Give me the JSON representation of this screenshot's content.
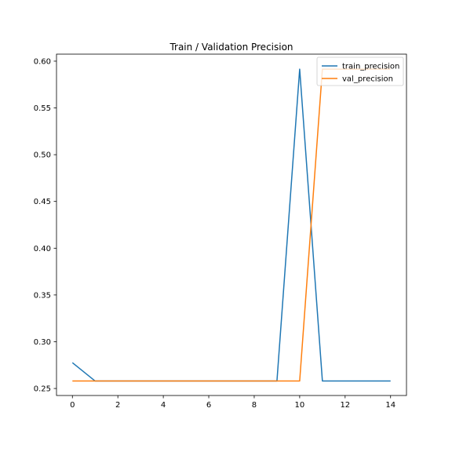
{
  "chart_data": {
    "type": "line",
    "title": "Train / Validation Precision",
    "xlabel": "",
    "ylabel": "",
    "x": [
      0,
      1,
      2,
      3,
      4,
      5,
      6,
      7,
      8,
      9,
      10,
      11,
      12,
      13,
      14
    ],
    "xlim": [
      -0.7,
      14.7
    ],
    "ylim": [
      0.2425,
      0.6075
    ],
    "xticks": [
      0,
      2,
      4,
      6,
      8,
      10,
      12,
      14
    ],
    "yticks": [
      0.25,
      0.3,
      0.35,
      0.4,
      0.45,
      0.5,
      0.55,
      0.6
    ],
    "xtick_labels": [
      "0",
      "2",
      "4",
      "6",
      "8",
      "10",
      "12",
      "14"
    ],
    "ytick_labels": [
      "0.25",
      "0.30",
      "0.35",
      "0.40",
      "0.45",
      "0.50",
      "0.55",
      "0.60"
    ],
    "grid": false,
    "legend_position": "top-right",
    "series": [
      {
        "name": "train_precision",
        "color": "#1f77b4",
        "values": [
          0.2776,
          0.258,
          0.258,
          0.258,
          0.258,
          0.258,
          0.258,
          0.258,
          0.258,
          0.258,
          0.5915,
          0.258,
          0.258,
          0.258,
          0.258
        ]
      },
      {
        "name": "val_precision",
        "color": "#ff7f0e",
        "values": [
          0.258,
          0.258,
          0.258,
          0.258,
          0.258,
          0.258,
          0.258,
          0.258,
          0.258,
          0.258,
          0.258,
          0.5915,
          0.5915,
          0.5915,
          0.5915
        ]
      }
    ]
  }
}
